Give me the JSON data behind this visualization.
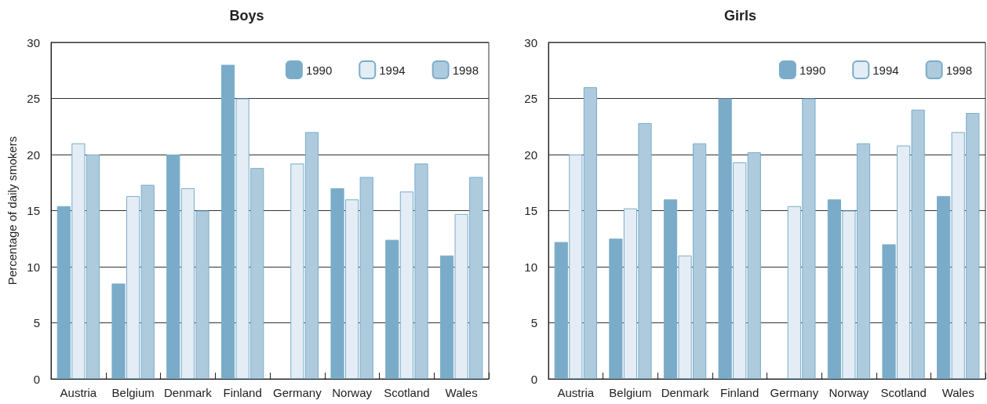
{
  "chart_data": [
    {
      "type": "bar",
      "title": "Boys",
      "ylabel": "Percentage of daily smokers",
      "categories": [
        "Austria",
        "Belgium",
        "Denmark",
        "Finland",
        "Germany",
        "Norway",
        "Scotland",
        "Wales"
      ],
      "series": [
        {
          "name": "1990",
          "color": "#7aacc9",
          "values": [
            15.4,
            8.5,
            20,
            28,
            null,
            17,
            12.4,
            11
          ]
        },
        {
          "name": "1994",
          "color": "#e4edf5",
          "values": [
            21,
            16.3,
            17,
            25,
            19.2,
            16,
            16.7,
            14.7
          ]
        },
        {
          "name": "1998",
          "color": "#aecbde",
          "values": [
            20,
            17.3,
            15,
            18.8,
            22,
            18,
            19.2,
            18
          ]
        }
      ],
      "ylim": [
        0,
        30
      ],
      "yticks": [
        0,
        5,
        10,
        15,
        20,
        25,
        30
      ],
      "grid": "y",
      "legend": "top right"
    },
    {
      "type": "bar",
      "title": "Girls",
      "categories": [
        "Austria",
        "Belgium",
        "Denmark",
        "Finland",
        "Germany",
        "Norway",
        "Scotland",
        "Wales"
      ],
      "series": [
        {
          "name": "1990",
          "color": "#7aacc9",
          "values": [
            12.2,
            12.5,
            16,
            25,
            null,
            16,
            12,
            16.3
          ]
        },
        {
          "name": "1994",
          "color": "#e4edf5",
          "values": [
            20,
            15.2,
            11,
            19.3,
            15.4,
            15,
            20.8,
            22
          ]
        },
        {
          "name": "1998",
          "color": "#aecbde",
          "values": [
            26,
            22.8,
            21,
            20.2,
            25,
            21,
            24,
            23.7
          ]
        }
      ],
      "ylim": [
        0,
        30
      ],
      "yticks": [
        0,
        5,
        10,
        15,
        20,
        25,
        30
      ],
      "grid": "y",
      "legend": "top right"
    }
  ]
}
